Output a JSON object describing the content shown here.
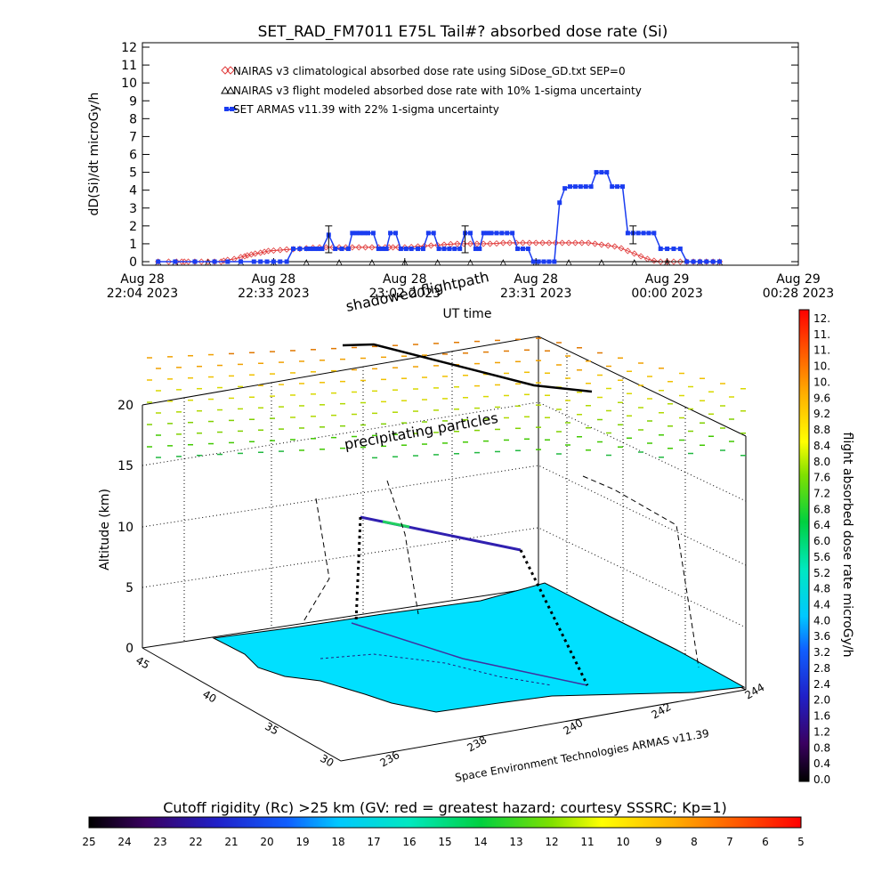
{
  "chart_data": [
    {
      "type": "line",
      "title": "SET_RAD_FM7011  E75L Tail#? absorbed dose rate (Si)",
      "ylabel": "dD(Si)/dt microGy/h",
      "xlabel": "UT time",
      "ylim": [
        0,
        12
      ],
      "yticks": [
        "0",
        "1",
        "2",
        "3",
        "4",
        "5",
        "6",
        "7",
        "8",
        "9",
        "10",
        "11",
        "12"
      ],
      "xticks": [
        {
          "top": "Aug 28",
          "bottom": "22:04 2023"
        },
        {
          "top": "Aug 28",
          "bottom": "22:33 2023"
        },
        {
          "top": "Aug 28",
          "bottom": "23:02 2023"
        },
        {
          "top": "Aug 28",
          "bottom": "23:31 2023"
        },
        {
          "top": "Aug 29",
          "bottom": "00:00 2023"
        },
        {
          "top": "Aug 29",
          "bottom": "00:28 2023"
        }
      ],
      "legend_placement": "top-left",
      "series": [
        {
          "name": "NAIRAS v3 climatological absorbed dose rate using SiDose_GD.txt SEP=0",
          "color": "#e03c3c",
          "marker": "diamond",
          "x": [
            0.12,
            0.2,
            0.26,
            0.3,
            0.32,
            0.35,
            0.4,
            0.45,
            0.5,
            0.55,
            0.6,
            0.62,
            0.65,
            0.7,
            0.75,
            0.78,
            0.8,
            0.83,
            0.86,
            0.9,
            0.93,
            0.96,
            1.0,
            1.05,
            1.1,
            1.15,
            1.2,
            1.25,
            1.3,
            1.35,
            1.4,
            1.45,
            1.5,
            1.55,
            1.6,
            1.65,
            1.7,
            1.75,
            1.8,
            1.85,
            1.88,
            1.91,
            1.95,
            2.0,
            2.05,
            2.1,
            2.15,
            2.2,
            2.25,
            2.3,
            2.35,
            2.4,
            2.45,
            2.5,
            2.55,
            2.6,
            2.65,
            2.7,
            2.75,
            2.8,
            2.85,
            2.9,
            2.95,
            3.0,
            3.05,
            3.1,
            3.15,
            3.2,
            3.25,
            3.3,
            3.35,
            3.4,
            3.45,
            3.5,
            3.55,
            3.6,
            3.65,
            3.7,
            3.75,
            3.8,
            3.85,
            3.9,
            3.95,
            4.0,
            4.05,
            4.1,
            4.15,
            4.2,
            4.25,
            4.3,
            4.35,
            4.4
          ],
          "values": [
            0.0,
            0.0,
            0.0,
            0.0,
            0.0,
            0.0,
            0.0,
            0.0,
            0.0,
            0.0,
            0.0,
            0.05,
            0.1,
            0.15,
            0.25,
            0.3,
            0.35,
            0.4,
            0.45,
            0.5,
            0.55,
            0.6,
            0.62,
            0.65,
            0.68,
            0.7,
            0.72,
            0.75,
            0.78,
            0.8,
            0.8,
            0.8,
            0.8,
            0.8,
            0.8,
            0.8,
            0.8,
            0.8,
            0.8,
            0.8,
            0.8,
            0.8,
            0.8,
            0.8,
            0.82,
            0.85,
            0.88,
            0.9,
            0.92,
            0.95,
            0.98,
            1.0,
            1.0,
            1.0,
            1.0,
            1.0,
            1.0,
            1.02,
            1.05,
            1.05,
            1.05,
            1.05,
            1.05,
            1.05,
            1.05,
            1.05,
            1.05,
            1.05,
            1.05,
            1.05,
            1.05,
            1.05,
            1.0,
            0.95,
            0.9,
            0.85,
            0.75,
            0.6,
            0.45,
            0.3,
            0.15,
            0.05,
            0.0,
            0.0,
            0.0,
            0.0,
            0.0,
            0.0,
            0.0,
            0.0,
            0.0,
            0.0
          ]
        },
        {
          "name": "NAIRAS v3 flight modeled absorbed dose rate with 10% 1-sigma uncertainty",
          "color": "#000000",
          "marker": "triangle",
          "x": [
            0.12,
            0.25,
            0.5,
            0.75,
            1.0,
            1.25,
            1.5,
            1.75,
            2.0,
            2.25,
            2.5,
            2.75,
            3.0,
            3.25,
            3.5,
            3.75,
            4.0,
            4.25,
            4.4
          ],
          "values": [
            0.0,
            0.0,
            0.0,
            0.0,
            0.0,
            0.0,
            0.0,
            0.0,
            0.0,
            0.0,
            0.0,
            0.0,
            0.0,
            0.0,
            0.0,
            0.0,
            0.0,
            0.0,
            0.0
          ]
        },
        {
          "name": "SET ARMAS v11.39 with 22% 1-sigma uncertainty",
          "color": "#1a3cf0",
          "marker": "square",
          "x": [
            0.12,
            0.25,
            0.4,
            0.55,
            0.65,
            0.75,
            0.85,
            0.9,
            0.95,
            1.0,
            1.05,
            1.1,
            1.15,
            1.2,
            1.25,
            1.28,
            1.31,
            1.34,
            1.37,
            1.42,
            1.47,
            1.52,
            1.57,
            1.6,
            1.63,
            1.66,
            1.69,
            1.72,
            1.76,
            1.8,
            1.83,
            1.86,
            1.89,
            1.93,
            1.97,
            2.01,
            2.05,
            2.1,
            2.14,
            2.18,
            2.22,
            2.26,
            2.3,
            2.34,
            2.38,
            2.42,
            2.46,
            2.5,
            2.54,
            2.57,
            2.6,
            2.63,
            2.66,
            2.7,
            2.74,
            2.78,
            2.82,
            2.86,
            2.9,
            2.94,
            2.98,
            3.02,
            3.06,
            3.1,
            3.14,
            3.18,
            3.22,
            3.26,
            3.3,
            3.34,
            3.38,
            3.42,
            3.46,
            3.5,
            3.54,
            3.58,
            3.62,
            3.66,
            3.7,
            3.74,
            3.78,
            3.82,
            3.86,
            3.9,
            3.95,
            4.0,
            4.05,
            4.1,
            4.15,
            4.2,
            4.25,
            4.3,
            4.35,
            4.4
          ],
          "values": [
            0.0,
            0.0,
            0.0,
            0.0,
            0.0,
            0.0,
            0.0,
            0.0,
            0.0,
            0.0,
            0.0,
            0.0,
            0.72,
            0.72,
            0.72,
            0.72,
            0.72,
            0.72,
            0.72,
            1.5,
            0.72,
            0.72,
            0.72,
            1.6,
            1.6,
            1.6,
            1.6,
            1.6,
            1.6,
            0.72,
            0.72,
            0.72,
            1.6,
            1.6,
            0.72,
            0.72,
            0.72,
            0.72,
            0.72,
            1.6,
            1.6,
            0.72,
            0.72,
            0.72,
            0.72,
            0.72,
            1.6,
            1.6,
            0.72,
            0.72,
            1.6,
            1.6,
            1.6,
            1.6,
            1.6,
            1.6,
            1.6,
            0.72,
            0.72,
            0.72,
            0.0,
            0.0,
            0.0,
            0.0,
            0.0,
            3.3,
            4.1,
            4.2,
            4.2,
            4.2,
            4.2,
            4.2,
            5.0,
            5.0,
            5.0,
            4.2,
            4.2,
            4.2,
            1.6,
            1.6,
            1.6,
            1.6,
            1.6,
            1.6,
            0.72,
            0.72,
            0.72,
            0.72,
            0.0,
            0.0,
            0.0,
            0.0,
            0.0,
            0.0
          ]
        }
      ],
      "error_bars": [
        {
          "series": "NAIRAS v3 flight modeled absorbed dose rate with 10% 1-sigma uncertainty",
          "x": 1.42,
          "low": 0.5,
          "high": 2.0
        },
        {
          "series": "NAIRAS v3 flight modeled absorbed dose rate with 10% 1-sigma uncertainty",
          "x": 2.46,
          "low": 0.5,
          "high": 2.0
        },
        {
          "series": "NAIRAS v3 flight modeled absorbed dose rate with 10% 1-sigma uncertainty",
          "x": 3.74,
          "low": 1.0,
          "high": 2.0
        }
      ]
    },
    {
      "type": "scatter",
      "title": "",
      "zlabel": "Altitude (km)",
      "zticks": [
        "0",
        "5",
        "10",
        "15",
        "20"
      ],
      "lat_ticks": [
        "30",
        "35",
        "40",
        "45"
      ],
      "lon_ticks": [
        "236",
        "238",
        "240",
        "242",
        "244"
      ],
      "annotations": [
        "shadowed flightpath",
        "precipitating particles"
      ],
      "credit": "Space Environment Technologies ARMAS v11.39",
      "colorbar": {
        "label": "flight absorbed dose rate microGy/h",
        "ticks": [
          "0.0",
          "0.4",
          "0.8",
          "1.2",
          "1.6",
          "2.0",
          "2.4",
          "2.8",
          "3.2",
          "3.6",
          "4.0",
          "4.4",
          "4.8",
          "5.2",
          "5.6",
          "6.0",
          "6.4",
          "6.8",
          "7.2",
          "7.6",
          "8.0",
          "8.4",
          "8.8",
          "9.2",
          "9.6",
          "10.",
          "10.",
          "11.",
          "11.",
          "12."
        ]
      }
    },
    {
      "type": "heatmap",
      "title": "Cutoff rigidity (Rc) >25 km (GV: red = greatest hazard; courtesy SSSRC; Kp=1)",
      "ticks": [
        "25",
        "24",
        "23",
        "22",
        "21",
        "20",
        "19",
        "18",
        "17",
        "16",
        "15",
        "14",
        "13",
        "12",
        "11",
        "10",
        "9",
        "8",
        "7",
        "6",
        "5"
      ]
    }
  ]
}
